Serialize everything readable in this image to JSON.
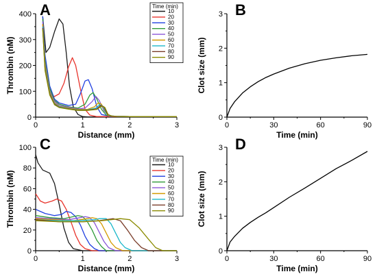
{
  "colors": [
    "#1a1a1a",
    "#e8332b",
    "#1f3fe0",
    "#2e9a37",
    "#8a55d7",
    "#d49a00",
    "#1ab7c9",
    "#7a3d2a",
    "#8a8a00"
  ],
  "chart_data": [
    {
      "id": "A",
      "type": "line",
      "panel_label": "A",
      "xlabel": "Distance (mm)",
      "ylabel": "Thrombin (nM)",
      "xlim": [
        0,
        3
      ],
      "ylim": [
        0,
        400
      ],
      "xticks": [
        0,
        1,
        2,
        3
      ],
      "yticks": [
        0,
        100,
        200,
        300,
        400
      ],
      "legend": {
        "title": "Time (min)",
        "placement": "top-right"
      },
      "series": [
        {
          "name": "10",
          "x": [
            0.15,
            0.22,
            0.3,
            0.4,
            0.5,
            0.58,
            0.65,
            0.72,
            0.8,
            0.9,
            1.0,
            1.1,
            1.3,
            1.6,
            2.0,
            2.5,
            3.0
          ],
          "y": [
            390,
            250,
            270,
            330,
            380,
            360,
            250,
            120,
            40,
            10,
            2,
            1,
            1,
            1,
            1,
            1,
            1
          ]
        },
        {
          "name": "20",
          "x": [
            0.15,
            0.2,
            0.3,
            0.4,
            0.5,
            0.6,
            0.7,
            0.78,
            0.85,
            0.95,
            1.05,
            1.15,
            1.3,
            1.6,
            2.0,
            2.5,
            3.0
          ],
          "y": [
            360,
            200,
            90,
            80,
            90,
            130,
            195,
            230,
            200,
            110,
            30,
            8,
            2,
            2,
            2,
            2,
            2
          ]
        },
        {
          "name": "30",
          "x": [
            0.15,
            0.2,
            0.3,
            0.4,
            0.5,
            0.7,
            0.85,
            0.95,
            1.05,
            1.12,
            1.2,
            1.3,
            1.4,
            1.6,
            2.0,
            2.5,
            3.0
          ],
          "y": [
            390,
            240,
            120,
            70,
            55,
            45,
            50,
            90,
            140,
            145,
            110,
            40,
            10,
            3,
            2,
            2,
            2
          ]
        },
        {
          "name": "40",
          "x": [
            0.15,
            0.2,
            0.3,
            0.4,
            0.5,
            0.7,
            0.9,
            1.05,
            1.15,
            1.22,
            1.3,
            1.4,
            1.5,
            1.7,
            2.0,
            2.5,
            3.0
          ],
          "y": [
            380,
            220,
            110,
            65,
            50,
            40,
            35,
            50,
            85,
            95,
            70,
            30,
            8,
            3,
            2,
            2,
            2
          ]
        },
        {
          "name": "50",
          "x": [
            0.15,
            0.2,
            0.3,
            0.4,
            0.5,
            0.7,
            0.9,
            1.05,
            1.2,
            1.28,
            1.35,
            1.45,
            1.55,
            1.7,
            2.0,
            2.5,
            3.0
          ],
          "y": [
            370,
            210,
            100,
            60,
            45,
            38,
            32,
            35,
            60,
            80,
            65,
            25,
            6,
            3,
            2,
            2,
            2
          ]
        },
        {
          "name": "60",
          "x": [
            0.15,
            0.2,
            0.3,
            0.4,
            0.5,
            0.7,
            0.9,
            1.1,
            1.25,
            1.33,
            1.4,
            1.48,
            1.55,
            1.7,
            2.0,
            2.5,
            3.0
          ],
          "y": [
            360,
            200,
            95,
            55,
            42,
            35,
            30,
            30,
            40,
            55,
            50,
            20,
            5,
            3,
            2,
            2,
            2
          ]
        },
        {
          "name": "70",
          "x": [
            0.15,
            0.2,
            0.3,
            0.4,
            0.5,
            0.7,
            0.9,
            1.1,
            1.28,
            1.36,
            1.43,
            1.5,
            1.58,
            1.7,
            2.0,
            2.5,
            3.0
          ],
          "y": [
            350,
            190,
            90,
            52,
            40,
            33,
            28,
            28,
            35,
            48,
            42,
            15,
            4,
            3,
            2,
            2,
            2
          ]
        },
        {
          "name": "80",
          "x": [
            0.15,
            0.2,
            0.3,
            0.4,
            0.5,
            0.7,
            0.9,
            1.1,
            1.3,
            1.38,
            1.45,
            1.52,
            1.6,
            1.7,
            2.0,
            2.5,
            3.0
          ],
          "y": [
            345,
            185,
            88,
            50,
            38,
            32,
            27,
            27,
            32,
            45,
            40,
            12,
            4,
            3,
            2,
            2,
            2
          ]
        },
        {
          "name": "90",
          "x": [
            0.15,
            0.2,
            0.3,
            0.4,
            0.5,
            0.7,
            0.9,
            1.1,
            1.3,
            1.4,
            1.47,
            1.54,
            1.62,
            1.72,
            2.0,
            2.5,
            3.0
          ],
          "y": [
            340,
            180,
            85,
            48,
            37,
            31,
            26,
            26,
            30,
            42,
            38,
            10,
            4,
            3,
            2,
            2,
            2
          ]
        }
      ]
    },
    {
      "id": "B",
      "type": "line",
      "panel_label": "B",
      "xlabel": "Time (min)",
      "ylabel": "Clot size (mm)",
      "xlim": [
        0,
        90
      ],
      "ylim": [
        0,
        3
      ],
      "xticks": [
        0,
        30,
        60,
        90
      ],
      "yticks": [
        0,
        1,
        2,
        3
      ],
      "series": [
        {
          "x": [
            0,
            2,
            5,
            10,
            15,
            20,
            25,
            30,
            40,
            50,
            60,
            70,
            80,
            90
          ],
          "y": [
            0,
            0.25,
            0.45,
            0.7,
            0.88,
            1.03,
            1.15,
            1.25,
            1.42,
            1.55,
            1.65,
            1.72,
            1.78,
            1.82
          ]
        }
      ]
    },
    {
      "id": "C",
      "type": "line",
      "panel_label": "C",
      "xlabel": "Distance (mm)",
      "ylabel": "Thrombin (nM)",
      "xlim": [
        0,
        3
      ],
      "ylim": [
        0,
        100
      ],
      "xticks": [
        0,
        1,
        2,
        3
      ],
      "yticks": [
        0,
        20,
        40,
        60,
        80,
        100
      ],
      "legend": {
        "title": "Time (min)",
        "placement": "top-right"
      },
      "series": [
        {
          "name": "10",
          "x": [
            0,
            0.05,
            0.15,
            0.3,
            0.4,
            0.5,
            0.6,
            0.7,
            0.8,
            1.0,
            3.0
          ],
          "y": [
            93,
            85,
            78,
            75,
            65,
            45,
            22,
            8,
            2,
            0,
            0
          ]
        },
        {
          "name": "20",
          "x": [
            0,
            0.1,
            0.2,
            0.35,
            0.45,
            0.55,
            0.65,
            0.75,
            0.85,
            0.95,
            1.05,
            1.2,
            3.0
          ],
          "y": [
            55,
            48,
            46,
            48,
            50,
            48,
            40,
            28,
            15,
            6,
            2,
            0,
            0
          ]
        },
        {
          "name": "30",
          "x": [
            0,
            0.2,
            0.4,
            0.55,
            0.65,
            0.75,
            0.85,
            0.95,
            1.05,
            1.15,
            1.25,
            1.35,
            3.0
          ],
          "y": [
            40,
            36,
            34,
            35,
            38,
            37,
            33,
            25,
            14,
            6,
            2,
            0,
            0
          ]
        },
        {
          "name": "40",
          "x": [
            0,
            0.3,
            0.6,
            0.8,
            0.9,
            1.0,
            1.1,
            1.2,
            1.3,
            1.4,
            1.5,
            3.0
          ],
          "y": [
            34,
            32,
            31,
            33,
            34,
            33,
            28,
            20,
            10,
            4,
            0,
            0
          ]
        },
        {
          "name": "50",
          "x": [
            0,
            0.3,
            0.7,
            0.95,
            1.05,
            1.15,
            1.25,
            1.35,
            1.45,
            1.55,
            1.7,
            3.0
          ],
          "y": [
            32,
            31,
            30,
            32,
            33,
            32,
            27,
            18,
            9,
            3,
            0,
            0
          ]
        },
        {
          "name": "60",
          "x": [
            0,
            0.4,
            0.8,
            1.1,
            1.2,
            1.3,
            1.4,
            1.5,
            1.6,
            1.7,
            1.85,
            3.0
          ],
          "y": [
            31,
            30,
            29,
            31,
            32,
            31,
            26,
            17,
            8,
            3,
            0,
            0
          ]
        },
        {
          "name": "70",
          "x": [
            0,
            0.5,
            0.9,
            1.25,
            1.35,
            1.5,
            1.6,
            1.7,
            1.8,
            1.9,
            2.05,
            3.0
          ],
          "y": [
            30,
            29,
            29,
            30,
            31,
            31,
            26,
            17,
            8,
            3,
            0,
            0
          ]
        },
        {
          "name": "80",
          "x": [
            0,
            0.5,
            1.0,
            1.35,
            1.5,
            1.65,
            1.8,
            1.95,
            2.1,
            2.25,
            2.4,
            3.0
          ],
          "y": [
            30,
            28,
            28,
            29,
            30,
            31,
            29,
            20,
            10,
            3,
            0,
            0
          ]
        },
        {
          "name": "90",
          "x": [
            0,
            0.5,
            1.0,
            1.4,
            1.6,
            1.8,
            2.0,
            2.2,
            2.4,
            2.55,
            2.7,
            3.0
          ],
          "y": [
            29,
            28,
            28,
            29,
            30,
            31,
            30,
            22,
            11,
            3,
            0,
            0
          ]
        }
      ]
    },
    {
      "id": "D",
      "type": "line",
      "panel_label": "D",
      "xlabel": "Time (min)",
      "ylabel": "Clot size (mm)",
      "xlim": [
        0,
        90
      ],
      "ylim": [
        0,
        3
      ],
      "xticks": [
        0,
        30,
        60,
        90
      ],
      "yticks": [
        0,
        1,
        2,
        3
      ],
      "series": [
        {
          "x": [
            0,
            2,
            5,
            10,
            15,
            20,
            25,
            30,
            40,
            50,
            60,
            70,
            80,
            90
          ],
          "y": [
            0,
            0.25,
            0.42,
            0.65,
            0.82,
            0.97,
            1.1,
            1.25,
            1.55,
            1.82,
            2.1,
            2.38,
            2.62,
            2.88
          ]
        }
      ]
    }
  ]
}
